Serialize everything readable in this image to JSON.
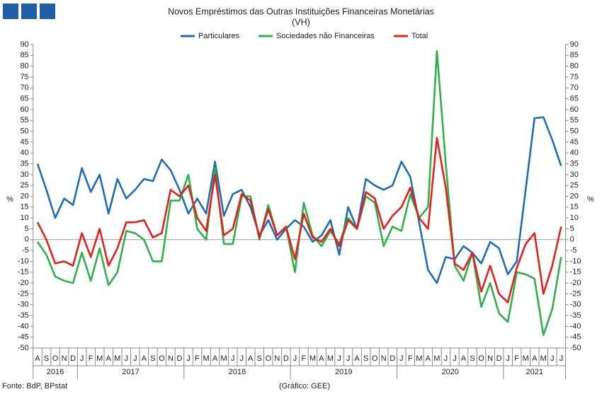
{
  "chart_data": {
    "type": "line",
    "title": "Novos Empréstimos das Outras Instituições Financeiras Monetárias",
    "subtitle": "(VH)",
    "ylabel": "%",
    "y2label": "%",
    "source": "Fonte: BdP, BPstat",
    "credit": "(Gráfico: GEE)",
    "categories": [
      "A",
      "S",
      "O",
      "N",
      "D",
      "J",
      "F",
      "M",
      "A",
      "M",
      "J",
      "J",
      "A",
      "S",
      "O",
      "N",
      "D",
      "J",
      "F",
      "M",
      "A",
      "M",
      "J",
      "J",
      "A",
      "S",
      "O",
      "N",
      "D",
      "J",
      "F",
      "M",
      "A",
      "M",
      "J",
      "J",
      "A",
      "S",
      "O",
      "N",
      "D",
      "J",
      "F",
      "M",
      "A",
      "M",
      "J",
      "J",
      "A",
      "S",
      "O",
      "N",
      "D",
      "J",
      "F",
      "M",
      "A",
      "M",
      "J",
      "J"
    ],
    "years": [
      "2016",
      "2017",
      "2018",
      "2019",
      "2020",
      "2021"
    ],
    "series": [
      {
        "name": "Particulares",
        "color": "#1f6db4",
        "values": [
          35,
          23,
          10,
          19,
          16,
          33,
          22,
          30,
          12,
          28,
          19,
          23,
          28,
          27,
          37,
          32,
          23,
          12,
          19,
          12,
          36,
          11,
          21,
          23,
          15,
          2,
          9,
          0,
          5,
          9,
          6,
          -1,
          2,
          9,
          -7,
          15,
          5,
          28,
          25,
          23,
          25,
          36,
          29,
          8,
          -14,
          -20,
          -8,
          -9,
          -3,
          -6,
          -11,
          -1,
          -4,
          -16,
          -10,
          23,
          56,
          56.5,
          46,
          34
        ]
      },
      {
        "name": "Sociedades não Financeiras",
        "color": "#2fb04a",
        "values": [
          -1,
          -7,
          -17,
          -19,
          -20,
          -6,
          -19,
          -4,
          -21,
          -15,
          4,
          3,
          0,
          -10,
          -10,
          18,
          18,
          30,
          5,
          0,
          33,
          -2,
          -2,
          20,
          20,
          0,
          16,
          2,
          6,
          -15,
          17,
          2,
          -3,
          4,
          -2,
          10,
          5,
          20,
          17,
          -3,
          6,
          4,
          21,
          10,
          15,
          87,
          35,
          -12,
          -19,
          -6,
          -31,
          -20,
          -34,
          -38,
          -15,
          -16,
          -18,
          -44,
          -32,
          -8
        ]
      },
      {
        "name": "Total",
        "color": "#e3201b",
        "values": [
          8,
          0,
          -11,
          -10,
          -12,
          3,
          -8,
          5,
          -12,
          -4,
          8,
          8,
          9,
          1,
          3,
          23,
          20,
          25,
          10,
          4,
          30,
          2,
          5,
          21,
          18,
          1,
          14,
          2,
          6,
          -9,
          12,
          1,
          -1,
          5,
          -3,
          9,
          5,
          22,
          19,
          5,
          11,
          15,
          24,
          10,
          5,
          47,
          24,
          -11,
          -14,
          -6,
          -24,
          -12,
          -25,
          -29,
          -13,
          -2,
          3,
          -25,
          -12,
          6
        ]
      }
    ],
    "ylim": [
      -50,
      90
    ],
    "yticks": [
      -50,
      -45,
      -40,
      -35,
      -30,
      -25,
      -20,
      -15,
      -10,
      -5,
      0,
      5,
      10,
      15,
      20,
      25,
      30,
      35,
      40,
      45,
      50,
      55,
      60,
      65,
      70,
      75,
      80,
      85,
      90
    ],
    "y2lim": [
      -50,
      90
    ],
    "y2ticks": [
      -50,
      -45,
      -40,
      -35,
      -30,
      -25,
      -20,
      -15,
      -10,
      -5,
      0,
      5,
      10,
      15,
      20,
      25,
      30,
      35,
      40,
      45,
      50,
      55,
      60,
      65,
      70,
      75,
      80,
      85,
      90
    ],
    "legend": "top"
  }
}
